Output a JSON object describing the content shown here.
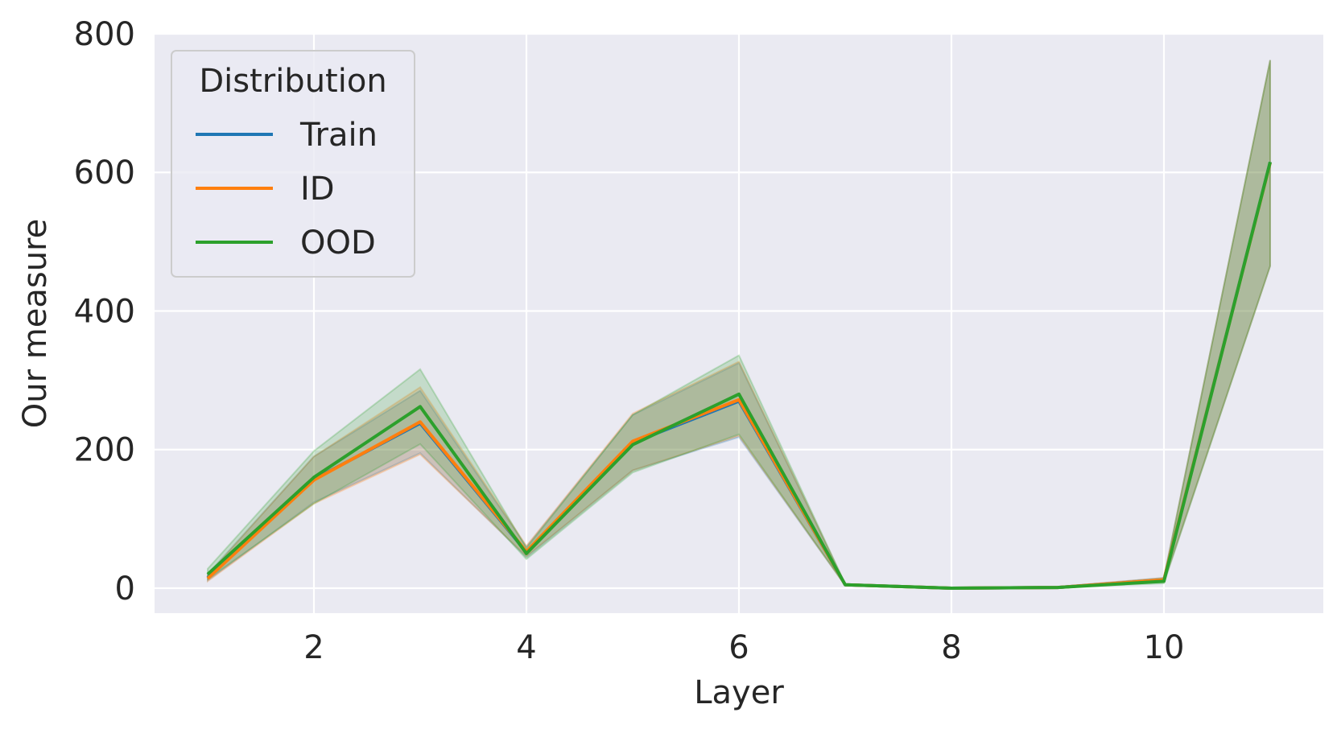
{
  "chart_data": {
    "type": "line",
    "xlabel": "Layer",
    "ylabel": "Our measure",
    "xlim": [
      0.5,
      11.5
    ],
    "ylim": [
      -36,
      800
    ],
    "xticks": [
      2,
      4,
      6,
      8,
      10
    ],
    "yticks": [
      0,
      200,
      400,
      600,
      800
    ],
    "grid": true,
    "legend": {
      "title": "Distribution",
      "placement": "top-left"
    },
    "x": [
      1,
      2,
      3,
      4,
      5,
      6,
      7,
      8,
      9,
      10,
      11
    ],
    "series": [
      {
        "name": "Train",
        "color": "#1f77b4",
        "values": [
          15,
          157,
          238,
          52,
          210,
          270,
          5,
          0,
          1,
          12,
          615
        ],
        "lower": [
          11,
          124,
          195,
          45,
          170,
          218,
          4,
          0,
          1,
          9,
          465
        ],
        "upper": [
          20,
          190,
          285,
          60,
          250,
          325,
          6,
          1,
          2,
          15,
          762
        ]
      },
      {
        "name": "ID",
        "color": "#ff7f0e",
        "values": [
          14,
          156,
          240,
          53,
          212,
          272,
          5,
          0,
          1,
          12,
          614
        ],
        "lower": [
          10,
          122,
          193,
          46,
          170,
          220,
          4,
          0,
          1,
          9,
          465
        ],
        "upper": [
          19,
          190,
          290,
          61,
          252,
          327,
          6,
          1,
          2,
          15,
          762
        ]
      },
      {
        "name": "OOD",
        "color": "#2ca02c",
        "values": [
          20,
          160,
          262,
          50,
          207,
          280,
          5,
          0,
          1,
          10,
          615
        ],
        "lower": [
          13,
          122,
          208,
          42,
          167,
          222,
          4,
          0,
          1,
          7,
          465
        ],
        "upper": [
          28,
          198,
          316,
          58,
          250,
          336,
          6,
          1,
          2,
          14,
          762
        ]
      }
    ]
  }
}
